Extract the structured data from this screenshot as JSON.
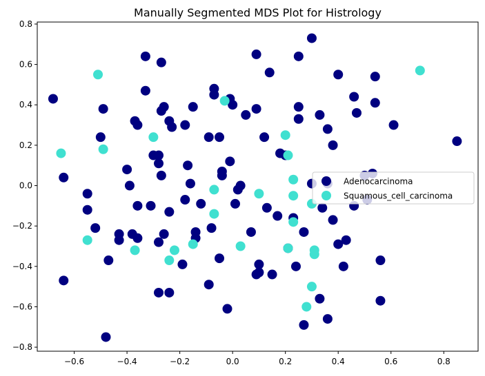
{
  "chart_data": {
    "type": "scatter",
    "title": "Manually Segmented MDS Plot for Histrology",
    "xlabel": "",
    "ylabel": "",
    "xlim": [
      -0.74,
      0.93
    ],
    "ylim": [
      -0.82,
      0.81
    ],
    "xticks": [
      -0.6,
      -0.4,
      -0.2,
      0.0,
      0.2,
      0.4,
      0.6,
      0.8
    ],
    "xtick_labels": [
      "−0.6",
      "−0.4",
      "−0.2",
      "0.0",
      "0.2",
      "0.4",
      "0.6",
      "0.8"
    ],
    "yticks": [
      -0.8,
      -0.6,
      -0.4,
      -0.2,
      0.0,
      0.2,
      0.4,
      0.6,
      0.8
    ],
    "ytick_labels": [
      "−0.8",
      "−0.6",
      "−0.4",
      "−0.2",
      "0.0",
      "0.2",
      "0.4",
      "0.6",
      "0.8"
    ],
    "grid": false,
    "legend_position": "center-right",
    "series": [
      {
        "name": "Adenocarcinoma",
        "color": "#000080",
        "points": [
          [
            -0.68,
            0.43
          ],
          [
            -0.64,
            0.04
          ],
          [
            -0.64,
            -0.47
          ],
          [
            -0.55,
            -0.04
          ],
          [
            -0.55,
            -0.12
          ],
          [
            -0.52,
            -0.21
          ],
          [
            -0.5,
            0.24
          ],
          [
            -0.49,
            0.38
          ],
          [
            -0.47,
            -0.37
          ],
          [
            -0.48,
            -0.75
          ],
          [
            -0.43,
            -0.24
          ],
          [
            -0.43,
            -0.27
          ],
          [
            -0.4,
            0.08
          ],
          [
            -0.39,
            0.0
          ],
          [
            -0.38,
            -0.24
          ],
          [
            -0.37,
            0.32
          ],
          [
            -0.36,
            0.3
          ],
          [
            -0.36,
            -0.26
          ],
          [
            -0.36,
            -0.1
          ],
          [
            -0.33,
            0.64
          ],
          [
            -0.33,
            0.47
          ],
          [
            -0.31,
            -0.1
          ],
          [
            -0.3,
            0.15
          ],
          [
            -0.28,
            0.15
          ],
          [
            -0.28,
            0.11
          ],
          [
            -0.28,
            -0.28
          ],
          [
            -0.28,
            -0.53
          ],
          [
            -0.27,
            0.37
          ],
          [
            -0.27,
            0.61
          ],
          [
            -0.26,
            0.39
          ],
          [
            -0.27,
            0.05
          ],
          [
            -0.26,
            -0.24
          ],
          [
            -0.24,
            0.32
          ],
          [
            -0.23,
            0.29
          ],
          [
            -0.24,
            -0.13
          ],
          [
            -0.24,
            -0.53
          ],
          [
            -0.19,
            -0.39
          ],
          [
            -0.18,
            -0.07
          ],
          [
            -0.18,
            0.3
          ],
          [
            -0.17,
            0.1
          ],
          [
            -0.16,
            0.01
          ],
          [
            -0.15,
            0.39
          ],
          [
            -0.14,
            -0.23
          ],
          [
            -0.14,
            -0.26
          ],
          [
            -0.12,
            -0.09
          ],
          [
            -0.09,
            0.24
          ],
          [
            -0.09,
            -0.49
          ],
          [
            -0.08,
            -0.21
          ],
          [
            -0.07,
            0.45
          ],
          [
            -0.07,
            0.48
          ],
          [
            -0.05,
            0.24
          ],
          [
            -0.05,
            -0.36
          ],
          [
            -0.04,
            0.07
          ],
          [
            -0.04,
            0.05
          ],
          [
            -0.02,
            -0.61
          ],
          [
            -0.01,
            0.12
          ],
          [
            -0.01,
            0.43
          ],
          [
            0.0,
            0.4
          ],
          [
            0.01,
            -0.09
          ],
          [
            0.02,
            -0.02
          ],
          [
            0.03,
            0.0
          ],
          [
            0.05,
            0.35
          ],
          [
            0.07,
            -0.23
          ],
          [
            0.09,
            0.38
          ],
          [
            0.09,
            0.65
          ],
          [
            0.09,
            -0.44
          ],
          [
            0.1,
            -0.43
          ],
          [
            0.1,
            -0.39
          ],
          [
            0.12,
            0.24
          ],
          [
            0.13,
            -0.11
          ],
          [
            0.14,
            0.56
          ],
          [
            0.15,
            -0.44
          ],
          [
            0.17,
            -0.15
          ],
          [
            0.18,
            0.16
          ],
          [
            0.2,
            0.15
          ],
          [
            0.21,
            -0.31
          ],
          [
            0.23,
            -0.16
          ],
          [
            0.24,
            -0.4
          ],
          [
            0.25,
            0.64
          ],
          [
            0.25,
            0.39
          ],
          [
            0.25,
            0.33
          ],
          [
            0.27,
            -0.23
          ],
          [
            0.27,
            -0.69
          ],
          [
            0.3,
            0.73
          ],
          [
            0.3,
            0.01
          ],
          [
            0.33,
            0.35
          ],
          [
            0.33,
            -0.56
          ],
          [
            0.34,
            -0.11
          ],
          [
            0.36,
            0.01
          ],
          [
            0.36,
            0.28
          ],
          [
            0.36,
            -0.66
          ],
          [
            0.38,
            0.2
          ],
          [
            0.38,
            -0.17
          ],
          [
            0.4,
            0.55
          ],
          [
            0.4,
            -0.29
          ],
          [
            0.42,
            -0.4
          ],
          [
            0.43,
            -0.27
          ],
          [
            0.46,
            0.44
          ],
          [
            0.46,
            -0.1
          ],
          [
            0.47,
            0.36
          ],
          [
            0.5,
            0.05
          ],
          [
            0.51,
            -0.07
          ],
          [
            0.53,
            0.06
          ],
          [
            0.54,
            0.41
          ],
          [
            0.54,
            0.54
          ],
          [
            0.56,
            -0.37
          ],
          [
            0.56,
            -0.57
          ],
          [
            0.61,
            0.3
          ],
          [
            0.85,
            0.22
          ]
        ]
      },
      {
        "name": "Squamous_cell_carcinoma",
        "color": "#40e0d0",
        "points": [
          [
            -0.65,
            0.16
          ],
          [
            -0.55,
            -0.27
          ],
          [
            -0.51,
            0.55
          ],
          [
            -0.49,
            0.18
          ],
          [
            -0.37,
            -0.32
          ],
          [
            -0.3,
            0.24
          ],
          [
            -0.24,
            -0.37
          ],
          [
            -0.22,
            -0.32
          ],
          [
            -0.15,
            -0.29
          ],
          [
            -0.07,
            -0.02
          ],
          [
            -0.07,
            -0.14
          ],
          [
            -0.03,
            0.42
          ],
          [
            0.03,
            -0.3
          ],
          [
            0.1,
            -0.04
          ],
          [
            0.2,
            0.25
          ],
          [
            0.21,
            0.15
          ],
          [
            0.21,
            -0.31
          ],
          [
            0.23,
            -0.18
          ],
          [
            0.23,
            0.03
          ],
          [
            0.23,
            -0.05
          ],
          [
            0.28,
            -0.6
          ],
          [
            0.3,
            -0.09
          ],
          [
            0.3,
            -0.5
          ],
          [
            0.31,
            -0.34
          ],
          [
            0.31,
            -0.32
          ],
          [
            0.71,
            0.57
          ]
        ]
      }
    ]
  }
}
